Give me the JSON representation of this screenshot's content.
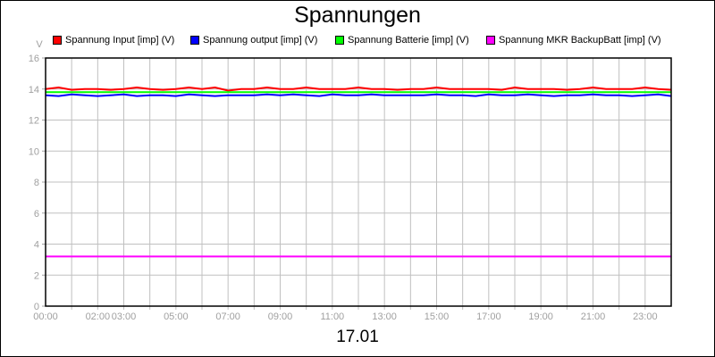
{
  "chart_data": {
    "type": "line",
    "title": "Spannungen",
    "xlabel": "17.01",
    "ylabel": "V",
    "ylim": [
      0,
      16
    ],
    "yticks": [
      "0",
      "2",
      "4",
      "6",
      "8",
      "10",
      "12",
      "14",
      "16"
    ],
    "xlim_hours": [
      0,
      24
    ],
    "xticks": [
      "00:00",
      "02:00",
      "03:00",
      "05:00",
      "07:00",
      "09:00",
      "11:00",
      "13:00",
      "15:00",
      "17:00",
      "19:00",
      "21:00",
      "23:00"
    ],
    "grid": true,
    "legend_position": "top",
    "x_hours": [
      0,
      0.5,
      1,
      1.5,
      2,
      2.5,
      3,
      3.5,
      4,
      4.5,
      5,
      5.5,
      6,
      6.5,
      7,
      7.5,
      8,
      8.5,
      9,
      9.5,
      10,
      10.5,
      11,
      11.5,
      12,
      12.5,
      13,
      13.5,
      14,
      14.5,
      15,
      15.5,
      16,
      16.5,
      17,
      17.5,
      18,
      18.5,
      19,
      19.5,
      20,
      20.5,
      21,
      21.5,
      22,
      22.5,
      23,
      23.5,
      24
    ],
    "series": [
      {
        "name": "Spannung Input [imp] (V)",
        "color": "#ff0000",
        "values": [
          14.0,
          14.1,
          13.95,
          14.0,
          14.0,
          13.95,
          14.0,
          14.1,
          14.0,
          13.95,
          14.0,
          14.1,
          14.0,
          14.1,
          13.9,
          14.0,
          14.0,
          14.1,
          14.0,
          14.0,
          14.1,
          14.0,
          14.0,
          14.0,
          14.1,
          14.0,
          14.0,
          13.95,
          14.0,
          14.0,
          14.1,
          14.0,
          14.0,
          14.0,
          14.0,
          13.95,
          14.1,
          14.0,
          14.0,
          14.0,
          13.95,
          14.0,
          14.1,
          14.0,
          14.0,
          14.0,
          14.1,
          14.0,
          13.95
        ]
      },
      {
        "name": "Spannung output [imp] (V)",
        "color": "#0000ff",
        "values": [
          13.6,
          13.55,
          13.65,
          13.6,
          13.55,
          13.6,
          13.65,
          13.55,
          13.6,
          13.6,
          13.55,
          13.65,
          13.6,
          13.55,
          13.6,
          13.6,
          13.6,
          13.65,
          13.6,
          13.65,
          13.6,
          13.55,
          13.65,
          13.6,
          13.6,
          13.65,
          13.6,
          13.6,
          13.6,
          13.6,
          13.65,
          13.6,
          13.6,
          13.55,
          13.65,
          13.6,
          13.6,
          13.65,
          13.6,
          13.55,
          13.6,
          13.6,
          13.65,
          13.6,
          13.6,
          13.55,
          13.6,
          13.65,
          13.55
        ]
      },
      {
        "name": "Spannung Batterie [imp] (V)",
        "color": "#00ff00",
        "values": [
          13.8,
          13.8,
          13.8,
          13.8,
          13.8,
          13.8,
          13.8,
          13.8,
          13.8,
          13.8,
          13.8,
          13.8,
          13.8,
          13.8,
          13.8,
          13.8,
          13.8,
          13.8,
          13.8,
          13.8,
          13.8,
          13.8,
          13.8,
          13.8,
          13.8,
          13.8,
          13.8,
          13.8,
          13.8,
          13.8,
          13.8,
          13.8,
          13.8,
          13.8,
          13.8,
          13.8,
          13.8,
          13.8,
          13.8,
          13.8,
          13.8,
          13.8,
          13.8,
          13.8,
          13.8,
          13.8,
          13.8,
          13.8,
          13.8
        ]
      },
      {
        "name": "Spannung MKR BackupBatt [imp] (V)",
        "color": "#ff00ff",
        "values": [
          3.2,
          3.2,
          3.2,
          3.2,
          3.2,
          3.2,
          3.2,
          3.2,
          3.2,
          3.2,
          3.2,
          3.2,
          3.2,
          3.2,
          3.2,
          3.2,
          3.2,
          3.2,
          3.2,
          3.2,
          3.2,
          3.2,
          3.2,
          3.2,
          3.2,
          3.2,
          3.2,
          3.2,
          3.2,
          3.2,
          3.2,
          3.2,
          3.2,
          3.2,
          3.2,
          3.2,
          3.2,
          3.2,
          3.2,
          3.2,
          3.2,
          3.2,
          3.2,
          3.2,
          3.2,
          3.2,
          3.2,
          3.2,
          3.2
        ]
      }
    ]
  }
}
